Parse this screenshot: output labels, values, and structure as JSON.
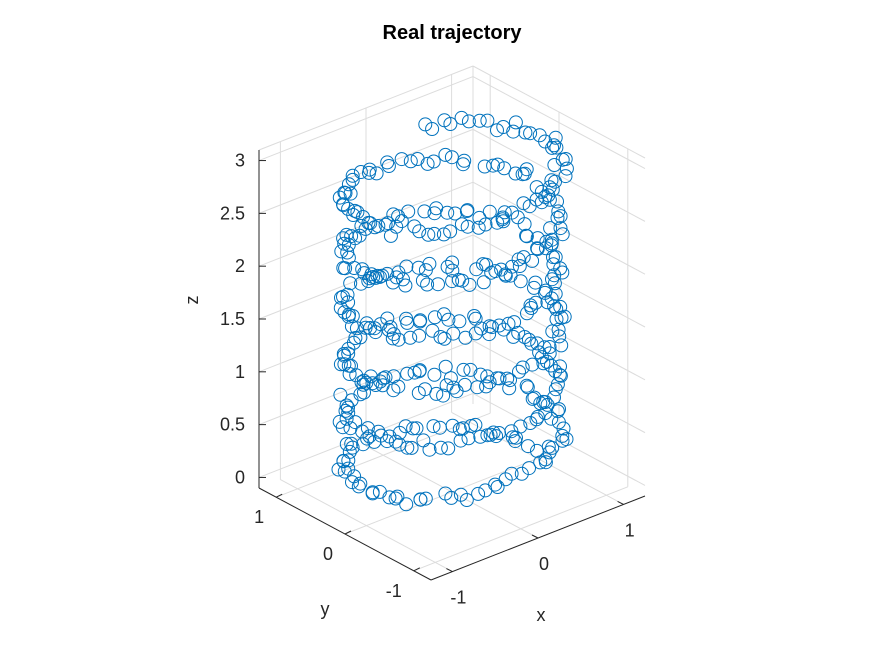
{
  "chart_data": {
    "type": "scatter",
    "title": "Real trajectory",
    "xlabel": "x",
    "ylabel": "y",
    "zlabel": "z",
    "xlim": [
      -1.25,
      1.25
    ],
    "ylim": [
      -1.25,
      1.25
    ],
    "zlim": [
      -0.1,
      3.1
    ],
    "xticks": [
      {
        "value": -1,
        "label": "-1"
      },
      {
        "value": 0,
        "label": "0"
      },
      {
        "value": 1,
        "label": "1"
      }
    ],
    "yticks": [
      {
        "value": -1,
        "label": "-1"
      },
      {
        "value": 0,
        "label": "0"
      },
      {
        "value": 1,
        "label": "1"
      }
    ],
    "zticks": [
      {
        "value": 0,
        "label": "0"
      },
      {
        "value": 0.5,
        "label": "0.5"
      },
      {
        "value": 1,
        "label": "1"
      },
      {
        "value": 1.5,
        "label": "1.5"
      },
      {
        "value": 2,
        "label": "2"
      },
      {
        "value": 2.5,
        "label": "2.5"
      },
      {
        "value": 3,
        "label": "3"
      }
    ],
    "grid": true,
    "marker": "circle",
    "marker_color": "#0072BD",
    "series": [
      {
        "description": "Noisy helix of radius ~1 rising from z≈0 to z≈3 over about 5.5 turns",
        "x": [
          1.0,
          0.87,
          0.52,
          0.04,
          -0.46,
          -0.83,
          -1.0,
          -0.93,
          -0.64,
          -0.2,
          0.3,
          0.73,
          0.97,
          0.98,
          0.75,
          0.36,
          -0.12,
          -0.58,
          -0.9,
          -1.0,
          -0.86,
          -0.5,
          -0.02,
          0.47,
          0.84,
          1.0,
          0.92,
          0.62,
          0.17,
          -0.32,
          -0.74,
          -0.98,
          -0.97,
          -0.73,
          -0.33,
          0.15,
          0.6,
          0.91,
          1.0,
          0.85,
          0.48,
          -0.01,
          -0.49,
          -0.85,
          -1.0,
          -0.91,
          -0.59,
          -0.14,
          0.35,
          0.76,
          0.98,
          0.97,
          0.71,
          0.3,
          -0.18,
          -0.63,
          -0.93,
          -0.99,
          -0.83,
          -0.45,
          0.04,
          0.52,
          0.87,
          1.0,
          0.89,
          0.56,
          0.1,
          -0.38,
          -0.78,
          -0.99,
          -0.96,
          -0.69,
          -0.27,
          0.22,
          0.66,
          0.94,
          0.99,
          0.81,
          0.42
        ],
        "y": [
          0.0,
          0.49,
          0.85,
          1.0,
          0.89,
          0.56,
          0.09,
          -0.38,
          -0.77,
          -0.98,
          -0.95,
          -0.69,
          -0.26,
          0.24,
          0.67,
          0.94,
          0.99,
          0.82,
          0.44,
          -0.05,
          -0.52,
          -0.87,
          -1.0,
          -0.88,
          -0.54,
          -0.06,
          0.41,
          0.79,
          0.99,
          0.95,
          0.67,
          0.23,
          -0.26,
          -0.69,
          -0.94,
          -0.99,
          -0.8,
          -0.41,
          0.08,
          0.55,
          0.88,
          1.0,
          0.87,
          0.51,
          0.03,
          -0.44,
          -0.81,
          -0.99,
          -0.94,
          -0.65,
          -0.2,
          0.29,
          0.71,
          0.95,
          0.98,
          0.78,
          0.38,
          -0.11,
          -0.57,
          -0.9,
          -1.0,
          -0.85,
          -0.49,
          0.0,
          0.47,
          0.83,
          0.99,
          0.93,
          0.62,
          0.17,
          -0.32,
          -0.73,
          -0.96,
          -0.98,
          -0.76,
          -0.35,
          0.14,
          0.59,
          0.91
        ],
        "z": [
          0.0,
          0.04,
          0.08,
          0.12,
          0.16,
          0.2,
          0.24,
          0.28,
          0.32,
          0.36,
          0.4,
          0.44,
          0.48,
          0.52,
          0.56,
          0.6,
          0.64,
          0.68,
          0.72,
          0.76,
          0.8,
          0.84,
          0.88,
          0.92,
          0.96,
          1.0,
          1.04,
          1.08,
          1.12,
          1.16,
          1.2,
          1.24,
          1.28,
          1.32,
          1.36,
          1.4,
          1.44,
          1.48,
          1.52,
          1.56,
          1.6,
          1.64,
          1.68,
          1.72,
          1.76,
          1.8,
          1.84,
          1.88,
          1.92,
          1.96,
          2.0,
          2.04,
          2.08,
          2.12,
          2.16,
          2.2,
          2.24,
          2.28,
          2.32,
          2.36,
          2.4,
          2.44,
          2.48,
          2.52,
          2.56,
          2.6,
          2.64,
          2.68,
          2.72,
          2.76,
          2.8,
          2.84,
          2.88,
          2.92,
          2.96,
          3.0,
          2.97,
          2.95,
          2.93
        ]
      }
    ]
  }
}
